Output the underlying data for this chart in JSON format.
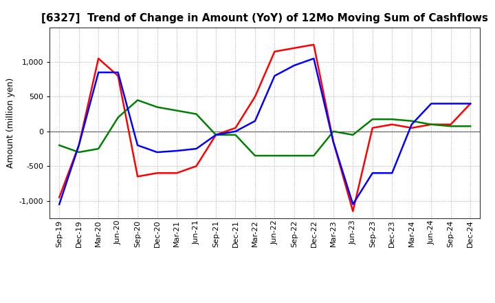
{
  "title": "[6327]  Trend of Change in Amount (YoY) of 12Mo Moving Sum of Cashflows",
  "ylabel": "Amount (million yen)",
  "background_color": "#ffffff",
  "plot_bg_color": "#ffffff",
  "grid_color": "#aaaaaa",
  "x_labels": [
    "Sep-19",
    "Dec-19",
    "Mar-20",
    "Jun-20",
    "Sep-20",
    "Dec-20",
    "Mar-21",
    "Jun-21",
    "Sep-21",
    "Dec-21",
    "Mar-22",
    "Jun-22",
    "Sep-22",
    "Dec-22",
    "Mar-23",
    "Jun-23",
    "Sep-23",
    "Dec-23",
    "Mar-24",
    "Jun-24",
    "Sep-24",
    "Dec-24"
  ],
  "operating": [
    -950,
    -200,
    1050,
    800,
    -650,
    -600,
    -600,
    -500,
    -50,
    50,
    500,
    1150,
    1200,
    1250,
    -150,
    -1150,
    50,
    100,
    50,
    100,
    100,
    400
  ],
  "investing": [
    -200,
    -300,
    -250,
    200,
    450,
    350,
    300,
    250,
    -50,
    -50,
    -350,
    -350,
    -350,
    -350,
    0,
    -50,
    175,
    175,
    150,
    100,
    75,
    75
  ],
  "free": [
    -1050,
    -200,
    850,
    850,
    -200,
    -300,
    -280,
    -250,
    -50,
    0,
    150,
    800,
    950,
    1050,
    -150,
    -1050,
    -600,
    -600,
    100,
    400,
    400,
    400
  ],
  "line_colors": {
    "operating": "#ff0000",
    "investing": "#008000",
    "free": "#0000ff"
  },
  "line_width": 1.8,
  "ylim": [
    -1250,
    1500
  ],
  "yticks": [
    -1000,
    -500,
    0,
    500,
    1000
  ],
  "title_fontsize": 11,
  "ylabel_fontsize": 9,
  "tick_fontsize": 8
}
